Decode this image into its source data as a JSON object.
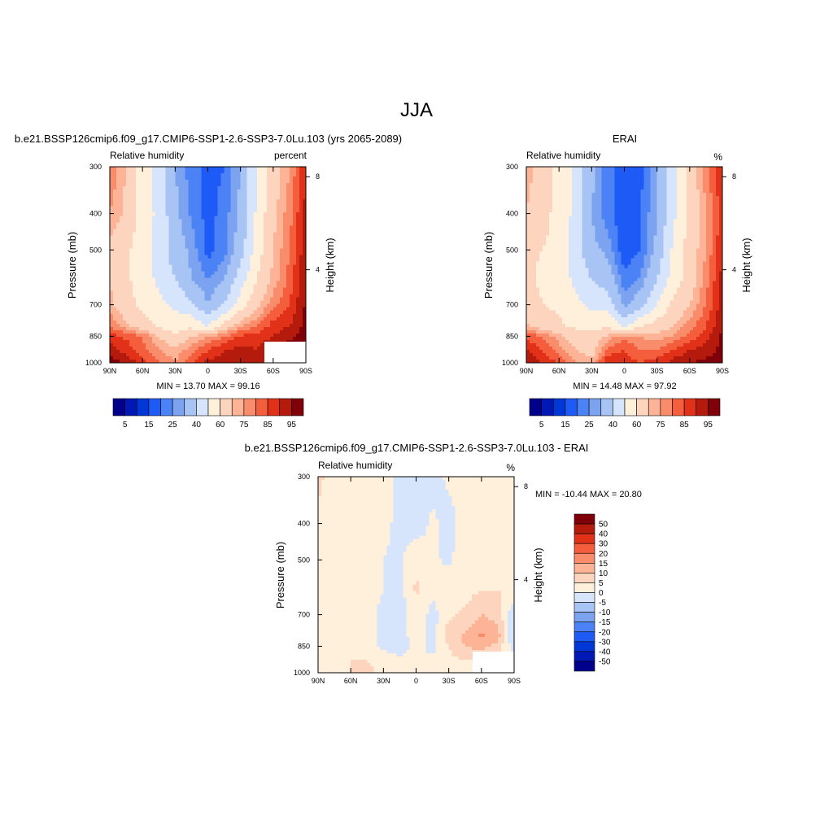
{
  "figure": {
    "title": "JJA"
  },
  "colors": {
    "abs_levels": [
      "#00008c",
      "#0019b4",
      "#0037d7",
      "#1e5af5",
      "#4b82f5",
      "#7ba3f0",
      "#a8c4f5",
      "#d6e5fb",
      "#fff0dc",
      "#fdd5be",
      "#fcb396",
      "#f98c6a",
      "#f45e3c",
      "#e13219",
      "#b41b0c",
      "#80000a"
    ],
    "diff_levels": [
      "#00008c",
      "#0019b4",
      "#0037d7",
      "#1e5af5",
      "#4b82f5",
      "#7ba3f0",
      "#a8c4f5",
      "#d6e5fb",
      "#fff0dc",
      "#fdd5be",
      "#fcb396",
      "#f98c6a",
      "#f45e3c",
      "#e13219",
      "#b41b0c",
      "#80000a"
    ]
  },
  "panels": {
    "model": {
      "header": "b.e21.BSSP126cmip6.f09_g17.CMIP6-SSP1-2.6-SSP3-7.0Lu.103 (yrs 2065-2089)",
      "left_label": "Relative humidity",
      "right_label": "percent",
      "ylabel": "Pressure (mb)",
      "y2label": "Height (km)",
      "stats": "MIN =  13.70  MAX =  99.16"
    },
    "obs": {
      "header": "ERAI",
      "left_label": "Relative humidity",
      "right_label": "%",
      "ylabel": "Pressure (mb)",
      "y2label": "Height (km)",
      "stats": "MIN =  14.48  MAX =  97.92"
    },
    "diff": {
      "header": "b.e21.BSSP126cmip6.f09_g17.CMIP6-SSP1-2.6-SSP3-7.0Lu.103 - ERAI",
      "left_label": "Relative humidity",
      "right_label": "%",
      "ylabel": "Pressure (mb)",
      "y2label": "Height (km)",
      "stats": "MIN = -10.44  MAX =  20.80"
    }
  },
  "axes": {
    "x_ticks": [
      "90N",
      "60N",
      "30N",
      "0",
      "30S",
      "60S",
      "90S"
    ],
    "y_ticks": [
      "300",
      "400",
      "500",
      "700",
      "850",
      "1000"
    ],
    "y_tick_values": [
      300,
      400,
      500,
      700,
      850,
      1000
    ],
    "y2_ticks": [
      "8",
      "4"
    ],
    "y2_tick_values_km": [
      8,
      4
    ]
  },
  "colorbars": {
    "abs_labels": [
      "5",
      "15",
      "25",
      "40",
      "60",
      "75",
      "85",
      "95"
    ],
    "diff_labels": [
      "50",
      "40",
      "30",
      "20",
      "15",
      "10",
      "5",
      "0",
      "-5",
      "-10",
      "-15",
      "-20",
      "-30",
      "-40",
      "-50"
    ]
  },
  "chart_data": [
    {
      "type": "heatmap",
      "title": "b.e21.BSSP126cmip6.f09_g17.CMIP6-SSP1-2.6-SSP3-7.0Lu.103 (yrs 2065-2089)",
      "variable": "Relative humidity",
      "units": "percent",
      "xlabel": "",
      "ylabel": "Pressure (mb)",
      "y2label": "Height (km)",
      "x": [
        90,
        75,
        60,
        45,
        30,
        15,
        0,
        -15,
        -30,
        -45,
        -60,
        -75,
        -90
      ],
      "y": [
        300,
        400,
        500,
        600,
        700,
        800,
        850,
        925,
        1000
      ],
      "z": [
        [
          80,
          70,
          55,
          45,
          30,
          22,
          18,
          20,
          30,
          50,
          65,
          75,
          90
        ],
        [
          75,
          68,
          55,
          48,
          32,
          24,
          18,
          22,
          32,
          52,
          68,
          78,
          92
        ],
        [
          68,
          62,
          55,
          45,
          35,
          28,
          18,
          22,
          35,
          55,
          70,
          80,
          94
        ],
        [
          70,
          62,
          55,
          48,
          40,
          30,
          25,
          30,
          45,
          60,
          72,
          82,
          95
        ],
        [
          72,
          64,
          57,
          52,
          48,
          42,
          30,
          40,
          55,
          68,
          78,
          85,
          96
        ],
        [
          80,
          72,
          66,
          58,
          55,
          58,
          50,
          65,
          75,
          80,
          88,
          90,
          97
        ],
        [
          88,
          84,
          80,
          70,
          62,
          70,
          75,
          80,
          86,
          88,
          90,
          94,
          97
        ],
        [
          92,
          88,
          82,
          75,
          72,
          78,
          85,
          90,
          92,
          90,
          95,
          98,
          99
        ],
        [
          98,
          94,
          88,
          80,
          75,
          85,
          92,
          92,
          93,
          92,
          96,
          99,
          99
        ]
      ],
      "levels": [
        5,
        10,
        15,
        20,
        25,
        30,
        40,
        50,
        60,
        70,
        75,
        80,
        85,
        90,
        95
      ],
      "stats": {
        "min": 13.7,
        "max": 99.16
      }
    },
    {
      "type": "heatmap",
      "title": "ERAI",
      "variable": "Relative humidity",
      "units": "%",
      "xlabel": "",
      "ylabel": "Pressure (mb)",
      "y2label": "Height (km)",
      "x": [
        90,
        75,
        60,
        45,
        30,
        15,
        0,
        -15,
        -30,
        -45,
        -60,
        -75,
        -90
      ],
      "y": [
        300,
        400,
        500,
        600,
        700,
        800,
        850,
        925,
        1000
      ],
      "z": [
        [
          72,
          68,
          55,
          48,
          32,
          22,
          16,
          18,
          28,
          48,
          65,
          78,
          90
        ],
        [
          70,
          65,
          55,
          48,
          30,
          22,
          16,
          20,
          30,
          48,
          62,
          75,
          88
        ],
        [
          62,
          60,
          55,
          45,
          32,
          28,
          16,
          20,
          32,
          52,
          65,
          75,
          90
        ],
        [
          62,
          58,
          55,
          48,
          40,
          35,
          22,
          26,
          40,
          55,
          65,
          78,
          92
        ],
        [
          65,
          60,
          58,
          52,
          48,
          45,
          28,
          35,
          50,
          62,
          70,
          80,
          93
        ],
        [
          72,
          66,
          62,
          58,
          55,
          60,
          48,
          60,
          65,
          70,
          78,
          85,
          95
        ],
        [
          84,
          80,
          72,
          66,
          64,
          72,
          78,
          75,
          72,
          76,
          82,
          88,
          96
        ],
        [
          90,
          85,
          78,
          70,
          66,
          82,
          85,
          80,
          80,
          86,
          90,
          92,
          97
        ],
        [
          96,
          90,
          84,
          76,
          72,
          90,
          88,
          85,
          88,
          92,
          95,
          97,
          98
        ]
      ],
      "levels": [
        5,
        10,
        15,
        20,
        25,
        30,
        40,
        50,
        60,
        70,
        75,
        80,
        85,
        90,
        95
      ],
      "stats": {
        "min": 14.48,
        "max": 97.92
      }
    },
    {
      "type": "heatmap",
      "title": "b.e21.BSSP126cmip6.f09_g17.CMIP6-SSP1-2.6-SSP3-7.0Lu.103 - ERAI",
      "variable": "Relative humidity",
      "units": "%",
      "xlabel": "",
      "ylabel": "Pressure (mb)",
      "y2label": "Height (km)",
      "x": [
        90,
        75,
        60,
        45,
        30,
        15,
        0,
        -15,
        -30,
        -45,
        -60,
        -75,
        -90
      ],
      "y": [
        300,
        400,
        500,
        600,
        700,
        800,
        850,
        925,
        1000
      ],
      "z": [
        [
          6,
          3,
          2,
          2,
          1,
          -1,
          -3,
          -2,
          1,
          2,
          2,
          1,
          2
        ],
        [
          4,
          3,
          3,
          2,
          1,
          -1,
          -3,
          1,
          -2,
          2,
          3,
          3,
          3
        ],
        [
          3,
          2,
          2,
          2,
          0,
          -1,
          4,
          1,
          -1,
          3,
          4,
          4,
          3
        ],
        [
          4,
          3,
          2,
          2,
          0,
          -2,
          6,
          1,
          3,
          3,
          5,
          5,
          3
        ],
        [
          3,
          2,
          2,
          1,
          -1,
          -3,
          4,
          -2,
          4,
          6,
          10,
          8,
          -4
        ],
        [
          4,
          3,
          2,
          1,
          -1,
          -3,
          3,
          -3,
          8,
          11,
          16,
          12,
          -6
        ],
        [
          3,
          2,
          3,
          1,
          -1,
          -3,
          2,
          -2,
          5,
          10,
          12,
          8,
          -3
        ],
        [
          4,
          3,
          5,
          5,
          3,
          1,
          2,
          1,
          4,
          5,
          4,
          3,
          1
        ],
        [
          3,
          3,
          5,
          6,
          4,
          2,
          2,
          2,
          3,
          4,
          4,
          3,
          1
        ]
      ],
      "levels": [
        -50,
        -40,
        -30,
        -20,
        -15,
        -10,
        -5,
        0,
        5,
        10,
        15,
        20,
        30,
        40,
        50
      ],
      "stats": {
        "min": -10.44,
        "max": 20.8
      }
    }
  ]
}
